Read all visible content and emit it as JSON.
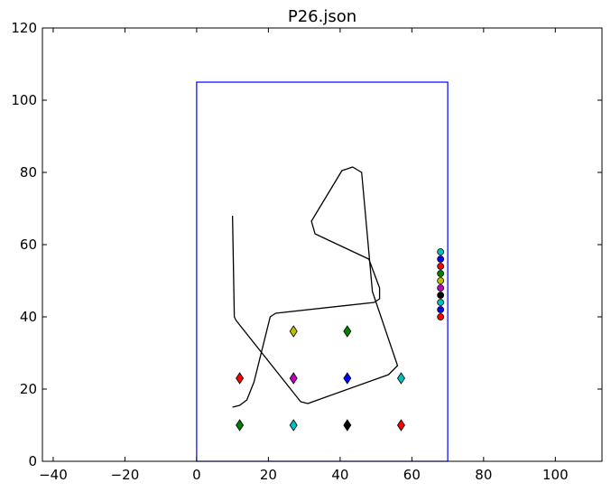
{
  "chart_data": {
    "type": "scatter",
    "title": "P26.json",
    "xlabel": "",
    "ylabel": "",
    "xlim": [
      -43,
      113
    ],
    "ylim": [
      0,
      120
    ],
    "xticks": [
      -40,
      -20,
      0,
      20,
      40,
      60,
      80,
      100
    ],
    "yticks": [
      0,
      20,
      40,
      60,
      80,
      100,
      120
    ],
    "grid": false,
    "field_rect": {
      "x0": 0,
      "y0": 0,
      "x1": 70,
      "y1": 105,
      "color": "#0000ff"
    },
    "path": {
      "color": "#000000",
      "points": [
        [
          10,
          68
        ],
        [
          10.5,
          40
        ],
        [
          11,
          39
        ],
        [
          29,
          16.5
        ],
        [
          31,
          16
        ],
        [
          53.5,
          24
        ],
        [
          56,
          26.5
        ],
        [
          49,
          47
        ],
        [
          46,
          80
        ],
        [
          43.5,
          81.5
        ],
        [
          40.5,
          80.5
        ],
        [
          32,
          66.5
        ],
        [
          33,
          63
        ],
        [
          48,
          56
        ],
        [
          51,
          48
        ],
        [
          51,
          45
        ],
        [
          49.5,
          44
        ],
        [
          22,
          41
        ],
        [
          20.5,
          40
        ],
        [
          16,
          22
        ],
        [
          14,
          17
        ],
        [
          12,
          15.5
        ],
        [
          10,
          15
        ]
      ]
    },
    "diamonds": [
      {
        "x": 12,
        "y": 10,
        "color": "#008000"
      },
      {
        "x": 27,
        "y": 10,
        "color": "#00bfbf"
      },
      {
        "x": 42,
        "y": 10,
        "color": "#000000"
      },
      {
        "x": 57,
        "y": 10,
        "color": "#ff0000"
      },
      {
        "x": 12,
        "y": 23,
        "color": "#ff0000"
      },
      {
        "x": 27,
        "y": 23,
        "color": "#bf00bf"
      },
      {
        "x": 42,
        "y": 23,
        "color": "#0000ff"
      },
      {
        "x": 57,
        "y": 23,
        "color": "#00bfbf"
      },
      {
        "x": 27,
        "y": 36,
        "color": "#bfbf00"
      },
      {
        "x": 42,
        "y": 36,
        "color": "#008000"
      }
    ],
    "circles": [
      {
        "x": 68,
        "y": 58,
        "color": "#00bfbf"
      },
      {
        "x": 68,
        "y": 56,
        "color": "#0000ff"
      },
      {
        "x": 68,
        "y": 54,
        "color": "#ff0000"
      },
      {
        "x": 68,
        "y": 52,
        "color": "#008000"
      },
      {
        "x": 68,
        "y": 50,
        "color": "#bfbf00"
      },
      {
        "x": 68,
        "y": 48,
        "color": "#bf00bf"
      },
      {
        "x": 68,
        "y": 46,
        "color": "#000000"
      },
      {
        "x": 68,
        "y": 44,
        "color": "#00bfbf"
      },
      {
        "x": 68,
        "y": 42,
        "color": "#0000ff"
      },
      {
        "x": 68,
        "y": 40,
        "color": "#ff0000"
      }
    ]
  }
}
